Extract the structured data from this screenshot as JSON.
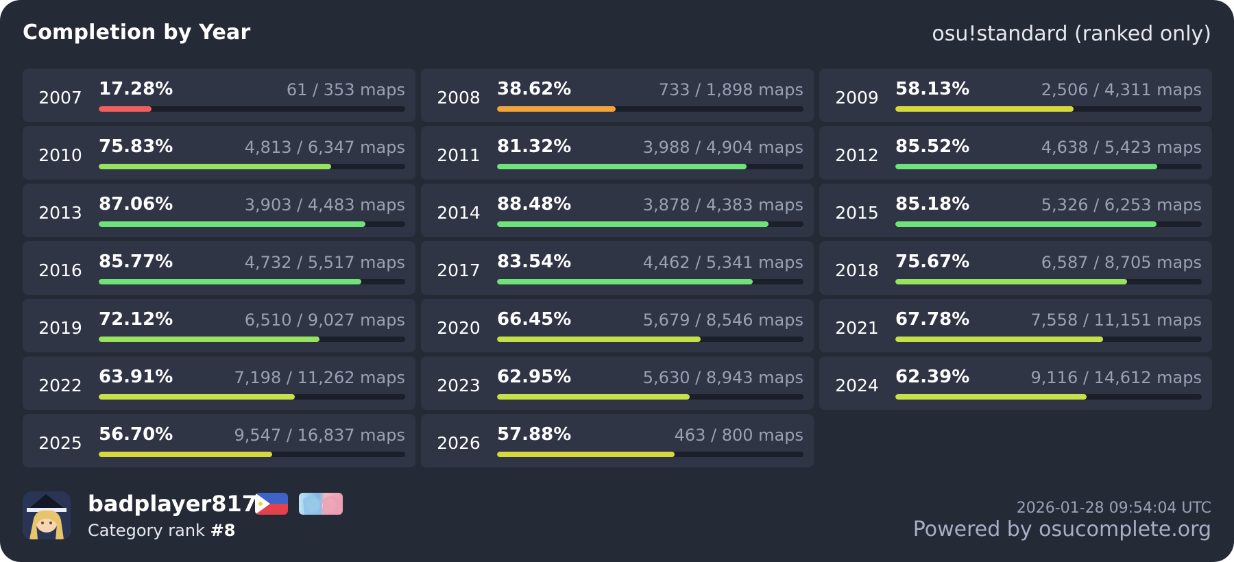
{
  "header": {
    "title": "Completion by Year",
    "mode": "osu!standard (ranked only)"
  },
  "colors": {
    "card_bg": "#252a37",
    "tile_bg": "#2f3545",
    "track_bg": "#1b1f29",
    "red": "#ef5f5f",
    "orange": "#f2a43a",
    "yellow": "#d7d83b",
    "yellow_green": "#c7e04a",
    "light_green": "#97e35f",
    "green": "#6fe27a"
  },
  "years": [
    {
      "year": "2007",
      "percent": "17.28%",
      "maps": "61 / 353 maps",
      "fraction": 0.1728,
      "color": "#ef5f5f"
    },
    {
      "year": "2008",
      "percent": "38.62%",
      "maps": "733 / 1,898 maps",
      "fraction": 0.3862,
      "color": "#f2a43a"
    },
    {
      "year": "2009",
      "percent": "58.13%",
      "maps": "2,506 / 4,311 maps",
      "fraction": 0.5813,
      "color": "#d7d83b"
    },
    {
      "year": "2010",
      "percent": "75.83%",
      "maps": "4,813 / 6,347 maps",
      "fraction": 0.7583,
      "color": "#97e35f"
    },
    {
      "year": "2011",
      "percent": "81.32%",
      "maps": "3,988 / 4,904 maps",
      "fraction": 0.8132,
      "color": "#6fe27a"
    },
    {
      "year": "2012",
      "percent": "85.52%",
      "maps": "4,638 / 5,423 maps",
      "fraction": 0.8552,
      "color": "#6fe27a"
    },
    {
      "year": "2013",
      "percent": "87.06%",
      "maps": "3,903 / 4,483 maps",
      "fraction": 0.8706,
      "color": "#6fe27a"
    },
    {
      "year": "2014",
      "percent": "88.48%",
      "maps": "3,878 / 4,383 maps",
      "fraction": 0.8848,
      "color": "#6fe27a"
    },
    {
      "year": "2015",
      "percent": "85.18%",
      "maps": "5,326 / 6,253 maps",
      "fraction": 0.8518,
      "color": "#6fe27a"
    },
    {
      "year": "2016",
      "percent": "85.77%",
      "maps": "4,732 / 5,517 maps",
      "fraction": 0.8577,
      "color": "#6fe27a"
    },
    {
      "year": "2017",
      "percent": "83.54%",
      "maps": "4,462 / 5,341 maps",
      "fraction": 0.8354,
      "color": "#6fe27a"
    },
    {
      "year": "2018",
      "percent": "75.67%",
      "maps": "6,587 / 8,705 maps",
      "fraction": 0.7567,
      "color": "#97e35f"
    },
    {
      "year": "2019",
      "percent": "72.12%",
      "maps": "6,510 / 9,027 maps",
      "fraction": 0.7212,
      "color": "#97e35f"
    },
    {
      "year": "2020",
      "percent": "66.45%",
      "maps": "5,679 / 8,546 maps",
      "fraction": 0.6645,
      "color": "#c7e04a"
    },
    {
      "year": "2021",
      "percent": "67.78%",
      "maps": "7,558 / 11,151 maps",
      "fraction": 0.6778,
      "color": "#c7e04a"
    },
    {
      "year": "2022",
      "percent": "63.91%",
      "maps": "7,198 / 11,262 maps",
      "fraction": 0.6391,
      "color": "#c7e04a"
    },
    {
      "year": "2023",
      "percent": "62.95%",
      "maps": "5,630 / 8,943 maps",
      "fraction": 0.6295,
      "color": "#c7e04a"
    },
    {
      "year": "2024",
      "percent": "62.39%",
      "maps": "9,116 / 14,612 maps",
      "fraction": 0.6239,
      "color": "#c7e04a"
    },
    {
      "year": "2025",
      "percent": "56.70%",
      "maps": "9,547 / 16,837 maps",
      "fraction": 0.567,
      "color": "#d7d83b"
    },
    {
      "year": "2026",
      "percent": "57.88%",
      "maps": "463 / 800 maps",
      "fraction": 0.5788,
      "color": "#d7d83b"
    }
  ],
  "footer": {
    "username": "badplayer817",
    "rank_label": "Category rank ",
    "rank_value": "#8",
    "timestamp": "2026-01-28 09:54:04 UTC",
    "powered_by": "Powered by osucomplete.org",
    "avatar_icon": "avatar-image",
    "flag_icon": "philippines-flag-icon",
    "team_icon": "team-badge-icon"
  }
}
